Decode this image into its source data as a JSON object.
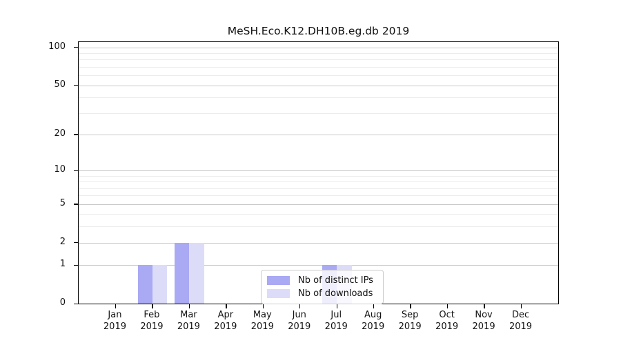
{
  "figure": {
    "background": "#ffffff"
  },
  "chart_data": {
    "type": "bar",
    "title": "MeSH.Eco.K12.DH10B.eg.db 2019",
    "categories": [
      "Jan",
      "Feb",
      "Mar",
      "Apr",
      "May",
      "Jun",
      "Jul",
      "Aug",
      "Sep",
      "Oct",
      "Nov",
      "Dec"
    ],
    "x_year_label": "2019",
    "series": [
      {
        "name": "Nb of distinct IPs",
        "color": "#a9a9f4",
        "values": [
          0,
          1,
          2,
          0,
          0,
          0,
          1,
          0,
          0,
          0,
          0,
          0
        ]
      },
      {
        "name": "Nb of downloads",
        "color": "#dcdcf9",
        "values": [
          0,
          1,
          2,
          0,
          0,
          0,
          1,
          0,
          0,
          0,
          0,
          0
        ]
      }
    ],
    "yaxis": {
      "scale": "log10(value+1)",
      "ticks": [
        0,
        1,
        2,
        5,
        10,
        20,
        50,
        100
      ],
      "minor_ticks": [
        3,
        4,
        6,
        7,
        8,
        9,
        30,
        40,
        60,
        70,
        80,
        90
      ],
      "ylim": [
        0,
        110
      ],
      "grid": true
    },
    "xaxis": {
      "slots": 13
    },
    "legend": {
      "position": "lower-center"
    },
    "bar_width_fraction": 0.4
  }
}
